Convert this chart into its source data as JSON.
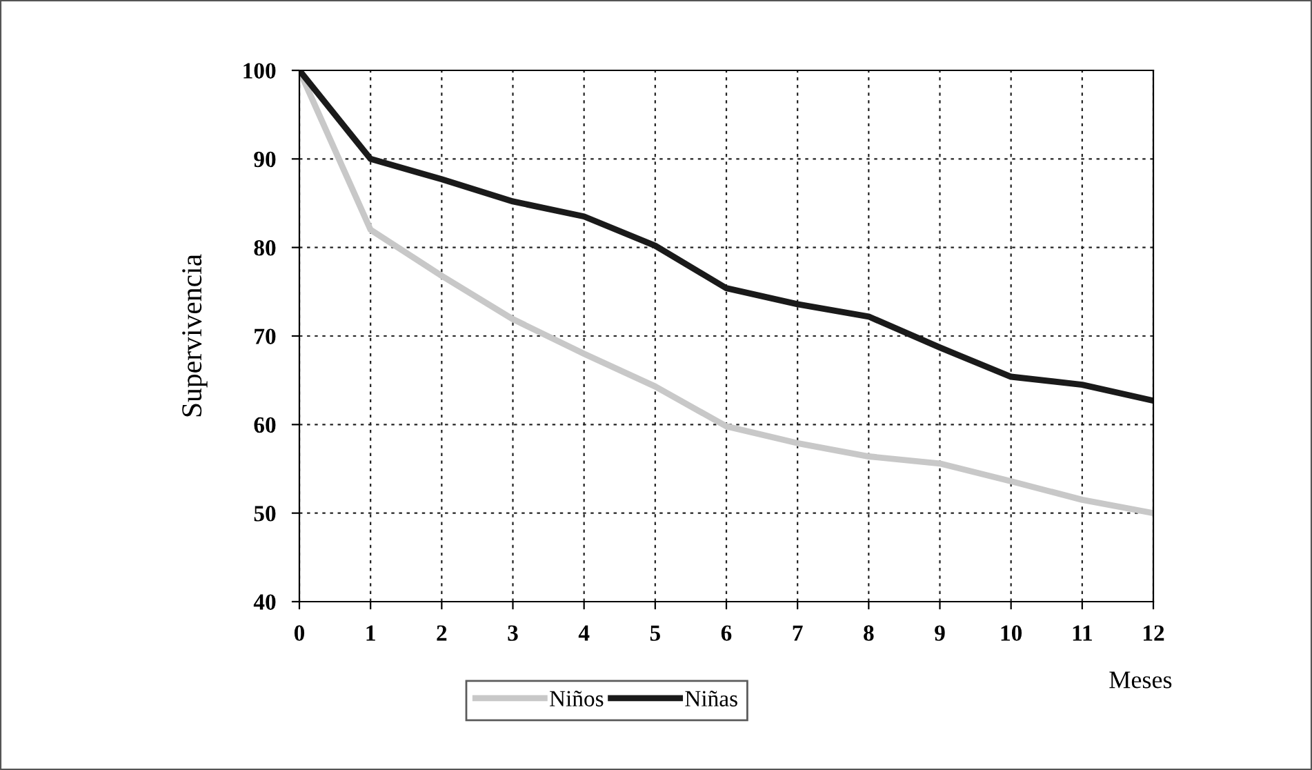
{
  "chart_data": {
    "type": "line",
    "ylabel": "Supervivencia",
    "xlabel": "Meses",
    "x": [
      0,
      1,
      2,
      3,
      4,
      5,
      6,
      7,
      8,
      9,
      10,
      11,
      12
    ],
    "series": [
      {
        "name": "Niños",
        "color": "#c8c8c8",
        "values": [
          100,
          82,
          76.8,
          71.9,
          68,
          64.3,
          59.8,
          57.9,
          56.4,
          55.6,
          53.6,
          51.5,
          50
        ]
      },
      {
        "name": "Niñas",
        "color": "#1a1a1a",
        "values": [
          100,
          90,
          87.7,
          85.2,
          83.5,
          80.2,
          75.4,
          73.6,
          72.2,
          68.7,
          65.4,
          64.5,
          62.7
        ]
      }
    ],
    "xlim": [
      0,
      12
    ],
    "xticks": [
      0,
      1,
      2,
      3,
      4,
      5,
      6,
      7,
      8,
      9,
      10,
      11,
      12
    ],
    "ylim": [
      40,
      100
    ],
    "yticks": [
      40,
      50,
      60,
      70,
      80,
      90,
      100
    ],
    "grid": true,
    "legend": "bottom",
    "marker": "none",
    "line_style": "solid"
  }
}
